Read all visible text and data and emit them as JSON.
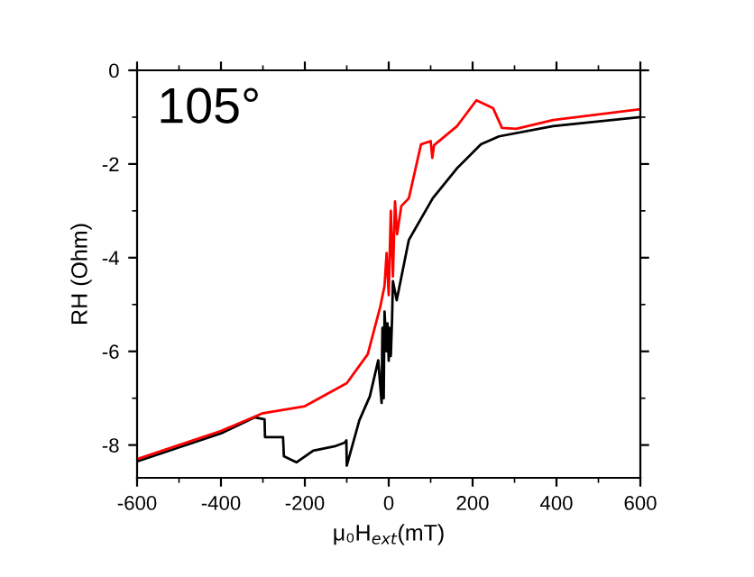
{
  "chart_data": {
    "type": "line",
    "xlabel": "μ₀H$_{ext}$(mT)",
    "ylabel": "RH (Ohm)",
    "annotations": [
      "105°"
    ],
    "xlim": [
      -600,
      600
    ],
    "xticks": [
      -600,
      -400,
      -200,
      0,
      200,
      400,
      600
    ],
    "ylim": [
      -8.7,
      0
    ],
    "yticks": [
      -8,
      -6,
      -4,
      -2,
      0
    ],
    "grid": false,
    "legend": false,
    "marker": "none",
    "line_style": "solid",
    "series": [
      {
        "color": "#000000",
        "x": [
          -600,
          -500,
          -400,
          -320,
          -296,
          -295,
          -252,
          -250,
          -220,
          -180,
          -130,
          -105,
          -101,
          -100,
          -70,
          -45,
          -25,
          -17,
          -15,
          -12,
          -10,
          -5,
          -3,
          0,
          2,
          5,
          8,
          10,
          19,
          48,
          105,
          163,
          220,
          263,
          392,
          600
        ],
        "values": [
          -8.35,
          -8.05,
          -7.75,
          -7.41,
          -7.45,
          -7.83,
          -7.83,
          -8.24,
          -8.37,
          -8.12,
          -8.03,
          -7.95,
          -7.9,
          -8.44,
          -7.47,
          -6.96,
          -6.19,
          -7.1,
          -5.5,
          -7.0,
          -5.15,
          -6.0,
          -5.4,
          -6.2,
          -5.5,
          -6.1,
          -5.3,
          -4.5,
          -4.91,
          -3.62,
          -2.73,
          -2.09,
          -1.58,
          -1.41,
          -1.19,
          -1.0
        ]
      },
      {
        "color": "#ff0000",
        "x": [
          -600,
          -500,
          -400,
          -300,
          -200,
          -100,
          -50,
          -20,
          -10,
          -5,
          0,
          5,
          10,
          15,
          20,
          30,
          48,
          77,
          100,
          104,
          108,
          163,
          209,
          249,
          270,
          304,
          392,
          600
        ],
        "values": [
          -8.3,
          -8.0,
          -7.7,
          -7.32,
          -7.17,
          -6.68,
          -6.06,
          -5.04,
          -4.6,
          -3.9,
          -4.8,
          -3.0,
          -4.4,
          -2.8,
          -3.5,
          -2.9,
          -2.73,
          -1.58,
          -1.51,
          -1.87,
          -1.6,
          -1.19,
          -0.64,
          -0.81,
          -1.23,
          -1.25,
          -1.06,
          -0.83
        ]
      }
    ]
  }
}
